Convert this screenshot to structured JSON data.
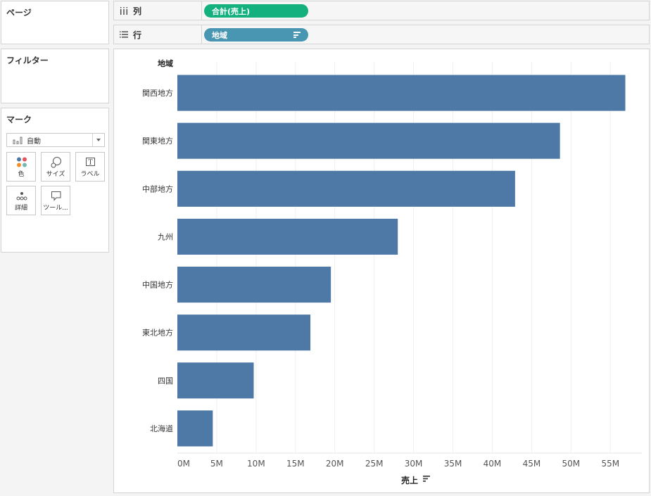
{
  "pages_card": {
    "title": "ページ"
  },
  "filters_card": {
    "title": "フィルター"
  },
  "marks_card": {
    "title": "マーク",
    "mark_type": "自動",
    "buttons": [
      {
        "label": "色",
        "icon": "color-dots-icon"
      },
      {
        "label": "サイズ",
        "icon": "size-icon"
      },
      {
        "label": "ラベル",
        "icon": "label-t-icon"
      },
      {
        "label": "詳細",
        "icon": "detail-dots-icon"
      },
      {
        "label": "ツール...",
        "icon": "tooltip-icon"
      }
    ]
  },
  "columns_shelf": {
    "label": "列",
    "pill": "合計(売上)",
    "pill_color": "#14b17f"
  },
  "rows_shelf": {
    "label": "行",
    "pill": "地域",
    "pill_color": "#4996b2"
  },
  "chart_data": {
    "type": "bar",
    "orientation": "horizontal",
    "row_header": "地域",
    "categories": [
      "関西地方",
      "関東地方",
      "中部地方",
      "九州",
      "中国地方",
      "東北地方",
      "四国",
      "北海道"
    ],
    "values": [
      56.9,
      48.6,
      42.9,
      28.0,
      19.5,
      16.9,
      9.7,
      4.5
    ],
    "value_unit": "M",
    "xlabel": "売上",
    "xlim": [
      0,
      59
    ],
    "xticks": [
      "0M",
      "5M",
      "10M",
      "15M",
      "20M",
      "25M",
      "30M",
      "35M",
      "40M",
      "45M",
      "50M",
      "55M"
    ],
    "bar_color": "#4e79a7",
    "grid": true
  }
}
